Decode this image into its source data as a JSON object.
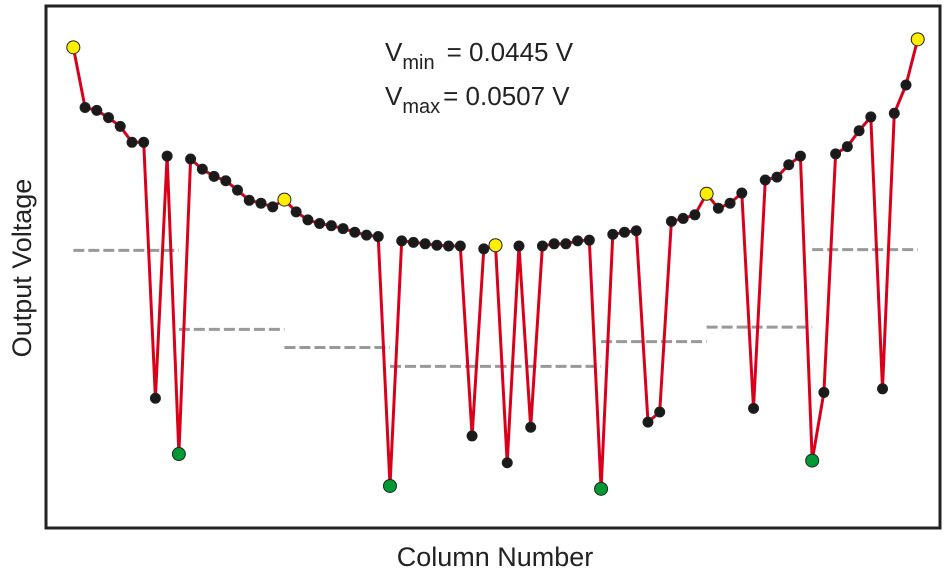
{
  "chart_data": {
    "type": "line",
    "xlabel": "Column Number",
    "ylabel": "Output Voltage",
    "annotations": {
      "vmin": {
        "symbol": "V",
        "sub": "min",
        "text": "= 0.0445 V"
      },
      "vmax": {
        "symbol": "V",
        "sub": "max",
        "text": "= 0.0507 V"
      }
    },
    "xlim": [
      -1.33,
      74.9
    ],
    "ylim": [
      0.04396,
      0.05116
    ],
    "grid": false,
    "axis_ticks": false,
    "colors": {
      "line": "#d9001b",
      "point": "#1a1a1a",
      "max_marker": "#ffee00",
      "min_marker": "#009933",
      "average": "#999999",
      "frame": "#222222"
    },
    "x": [
      1,
      2,
      3,
      4,
      5,
      6,
      7,
      8,
      9,
      10,
      11,
      12,
      13,
      14,
      15,
      16,
      17,
      18,
      19,
      20,
      21,
      22,
      23,
      24,
      25,
      26,
      27,
      28,
      29,
      30,
      31,
      32,
      33,
      34,
      35,
      36,
      37,
      38,
      39,
      40,
      41,
      42,
      43,
      44,
      45,
      46,
      47,
      48,
      49,
      50,
      51,
      52,
      53,
      54,
      55,
      56,
      57,
      58,
      59,
      60,
      61,
      62,
      63,
      64,
      65,
      66,
      67,
      68,
      69,
      70,
      71,
      72,
      73
    ],
    "y": [
      0.05059,
      0.04976,
      0.04972,
      0.04962,
      0.0495,
      0.04928,
      0.04928,
      0.04575,
      0.04909,
      0.04498,
      0.04905,
      0.04891,
      0.04881,
      0.04875,
      0.04862,
      0.04848,
      0.04844,
      0.04839,
      0.04849,
      0.04832,
      0.04821,
      0.04816,
      0.04813,
      0.04809,
      0.04804,
      0.048,
      0.04798,
      0.04454,
      0.04792,
      0.0479,
      0.04788,
      0.04786,
      0.04785,
      0.04785,
      0.04523,
      0.04781,
      0.04786,
      0.04486,
      0.04785,
      0.04535,
      0.04785,
      0.04788,
      0.04788,
      0.04792,
      0.04793,
      0.0445,
      0.04801,
      0.04804,
      0.04806,
      0.04542,
      0.04556,
      0.04819,
      0.04823,
      0.04828,
      0.04857,
      0.04837,
      0.04844,
      0.04858,
      0.04561,
      0.04876,
      0.0488,
      0.04897,
      0.04909,
      0.04489,
      0.04583,
      0.04912,
      0.04922,
      0.04944,
      0.04963,
      0.04588,
      0.04968,
      0.05007,
      0.0507
    ],
    "max_marker_columns": [
      1,
      19,
      37,
      55,
      73
    ],
    "min_marker_columns": [
      10,
      28,
      46,
      64
    ],
    "segment_averages": [
      {
        "from": 1,
        "to": 10,
        "value": 0.04779
      },
      {
        "from": 10,
        "to": 19,
        "value": 0.0467
      },
      {
        "from": 19,
        "to": 28,
        "value": 0.04645
      },
      {
        "from": 28,
        "to": 37,
        "value": 0.04619
      },
      {
        "from": 37,
        "to": 46,
        "value": 0.04619
      },
      {
        "from": 46,
        "to": 55,
        "value": 0.04653
      },
      {
        "from": 55,
        "to": 64,
        "value": 0.04673
      },
      {
        "from": 64,
        "to": 73,
        "value": 0.0478
      }
    ]
  }
}
